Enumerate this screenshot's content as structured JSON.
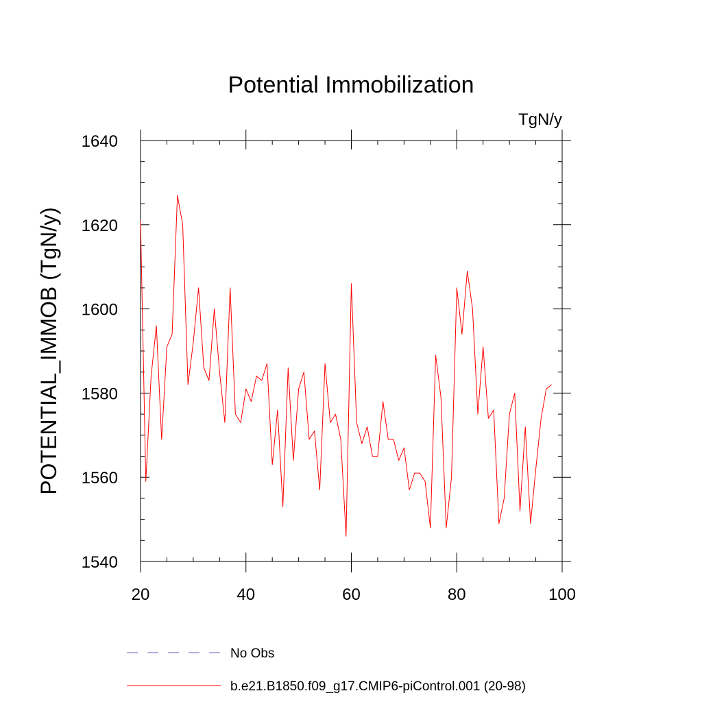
{
  "chart_data": {
    "type": "line",
    "title": "Potential Immobilization",
    "units_label": "TgN/y",
    "xlabel": "",
    "ylabel": "POTENTIAL_IMMOB  (TgN/y)",
    "xlim": [
      20,
      100
    ],
    "ylim": [
      1540,
      1640
    ],
    "x_ticks": [
      20,
      40,
      60,
      80,
      100
    ],
    "x_tick_labels": [
      "20",
      "40",
      "60",
      "80",
      "100"
    ],
    "y_ticks": [
      1540,
      1560,
      1580,
      1600,
      1620,
      1640
    ],
    "y_tick_labels": [
      "1540",
      "1560",
      "1580",
      "1600",
      "1620",
      "1640"
    ],
    "x_minor_step": 5,
    "y_minor_step": 5,
    "grid": false,
    "legend_position": "bottom",
    "series": [
      {
        "name": "b.e21.B1850.f09_g17.CMIP6-piControl.001 (20-98)",
        "color": "#ff0000",
        "style": "solid",
        "x": [
          20,
          21,
          22,
          23,
          24,
          25,
          26,
          27,
          28,
          29,
          30,
          31,
          32,
          33,
          34,
          35,
          36,
          37,
          38,
          39,
          40,
          41,
          42,
          43,
          44,
          45,
          46,
          47,
          48,
          49,
          50,
          51,
          52,
          53,
          54,
          55,
          56,
          57,
          58,
          59,
          60,
          61,
          62,
          63,
          64,
          65,
          66,
          67,
          68,
          69,
          70,
          71,
          72,
          73,
          74,
          75,
          76,
          77,
          78,
          79,
          80,
          81,
          82,
          83,
          84,
          85,
          86,
          87,
          88,
          89,
          90,
          91,
          92,
          93,
          94,
          95,
          96,
          97,
          98
        ],
        "y": [
          1621,
          1559,
          1584,
          1596,
          1569,
          1591,
          1594,
          1627,
          1620,
          1582,
          1592,
          1605,
          1586,
          1583,
          1600,
          1585,
          1573,
          1605,
          1575,
          1573,
          1581,
          1578,
          1584,
          1583,
          1587,
          1563,
          1576,
          1553,
          1586,
          1564,
          1581,
          1585,
          1569,
          1571,
          1557,
          1587,
          1573,
          1575,
          1569,
          1546,
          1606,
          1573,
          1568,
          1572,
          1565,
          1565,
          1578,
          1569,
          1569,
          1564,
          1567,
          1557,
          1561,
          1561,
          1559,
          1548,
          1589,
          1579,
          1548,
          1560,
          1605,
          1594,
          1609,
          1600,
          1575,
          1591,
          1574,
          1576,
          1549,
          1555,
          1575,
          1580,
          1552,
          1572,
          1549,
          1562,
          1574,
          1581,
          1582
        ]
      }
    ],
    "legend": [
      {
        "label": "No Obs",
        "color": "#6a60c0",
        "style": "dashed"
      },
      {
        "label": "b.e21.B1850.f09_g17.CMIP6-piControl.001 (20-98)",
        "color": "#ff0000",
        "style": "solid"
      }
    ]
  }
}
